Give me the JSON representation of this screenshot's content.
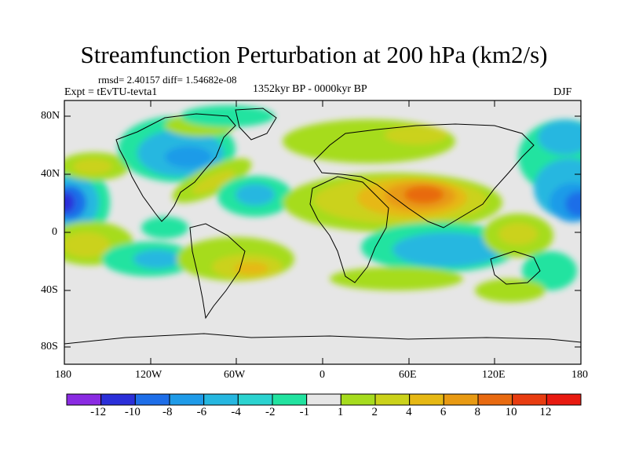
{
  "title": "Streamfunction Perturbation at 200 hPa (km2/s)",
  "stats": "rmsd= 2.40157 diff= 1.54682e-08",
  "experiment": "Expt = tEvTU-tevta1",
  "period": "1352kyr BP - 0000kyr BP",
  "season": "DJF",
  "lat_ticks": [
    "80N",
    "40N",
    "0",
    "40S",
    "80S"
  ],
  "lon_ticks": [
    "180",
    "120W",
    "60W",
    "0",
    "60E",
    "120E",
    "180"
  ],
  "colorbar": {
    "labels": [
      "-12",
      "-10",
      "-8",
      "-6",
      "-4",
      "-2",
      "-1",
      "1",
      "2",
      "4",
      "6",
      "8",
      "10",
      "12"
    ],
    "colors": [
      "#8a2be2",
      "#2b2fd9",
      "#1e6ee8",
      "#1f9be8",
      "#26b7e0",
      "#2bd3d0",
      "#22e3a0",
      "#e6e6e6",
      "#a6dc1e",
      "#cbd21a",
      "#e6b814",
      "#e89a12",
      "#e86a10",
      "#e83c10",
      "#e81a10"
    ]
  }
}
